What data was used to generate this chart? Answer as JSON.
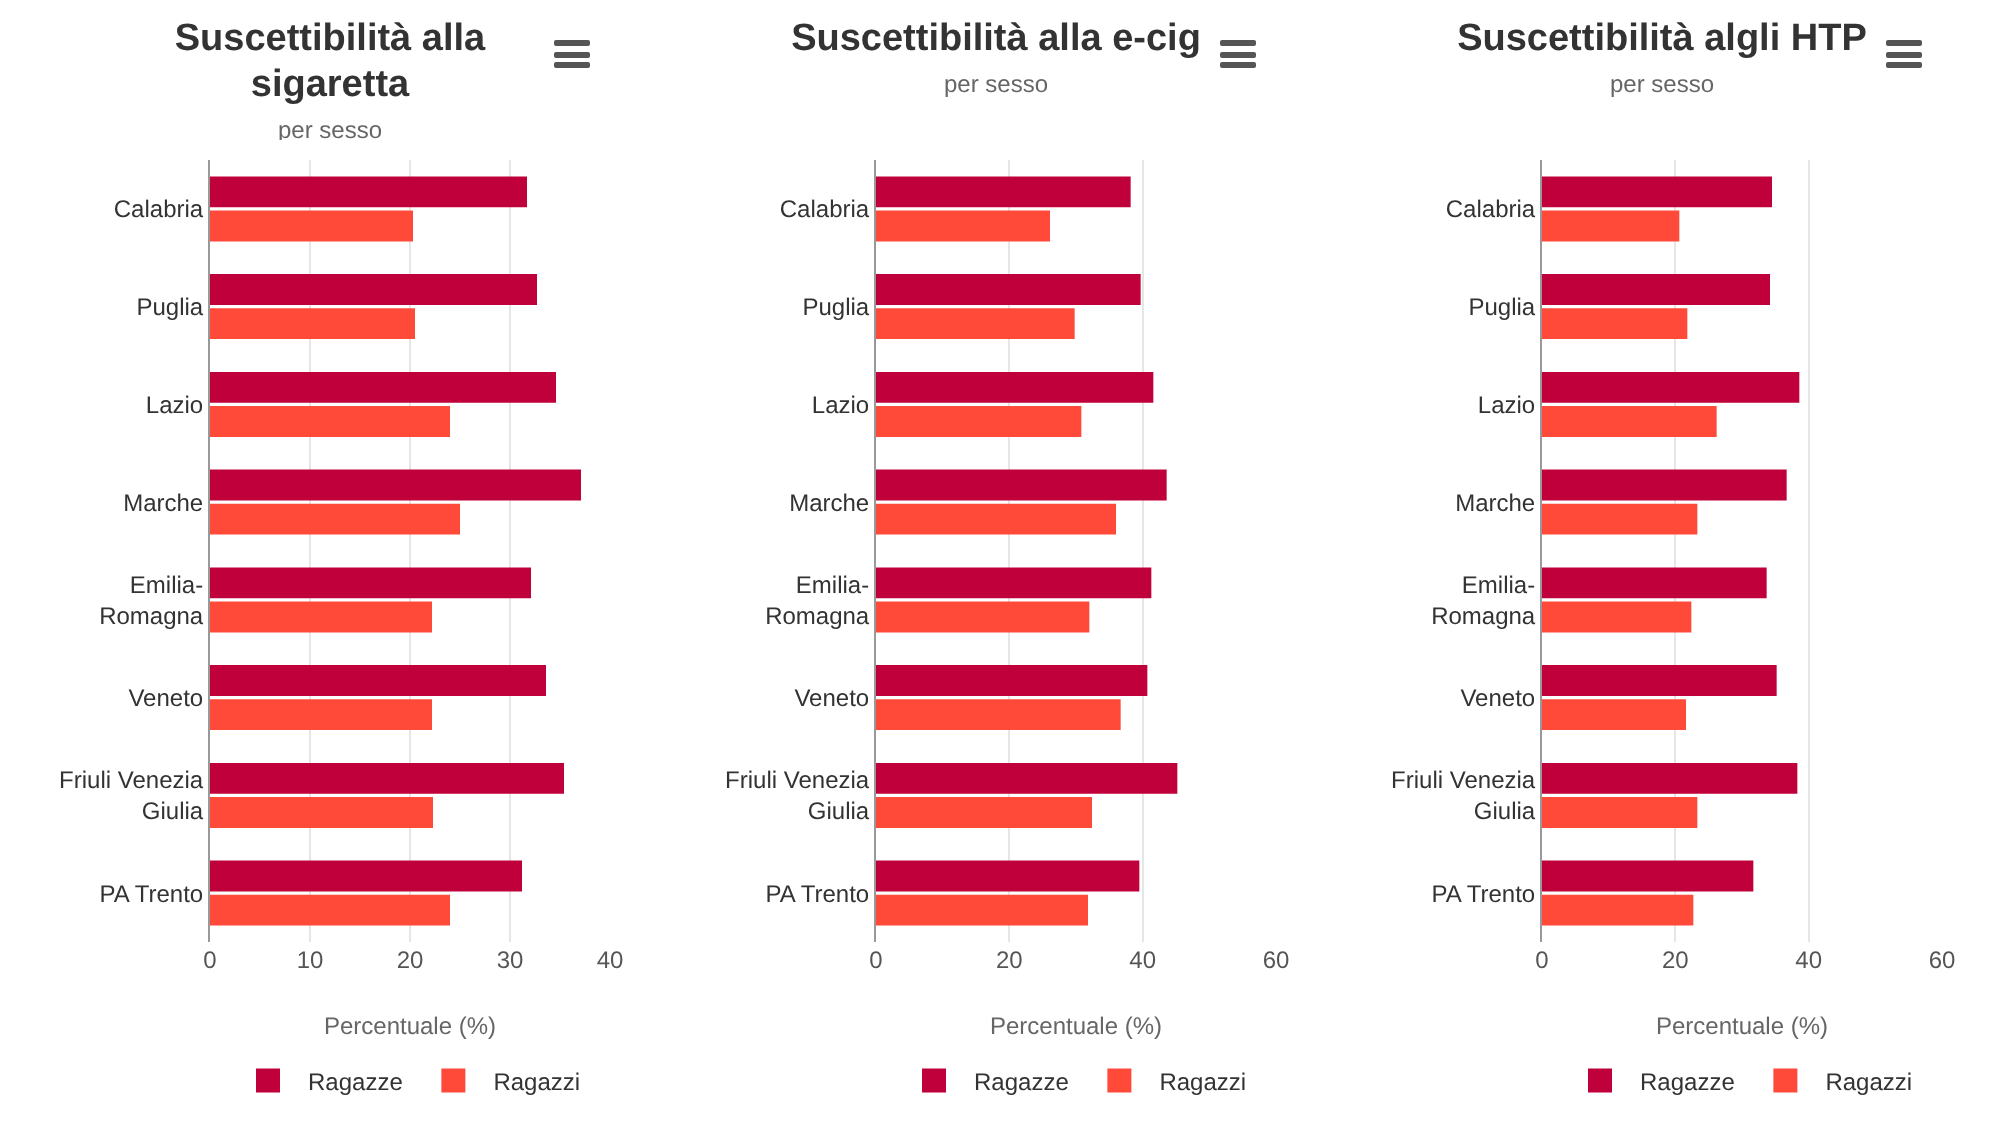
{
  "chart_data": [
    {
      "type": "bar",
      "title": "Suscettibilità alla sigaretta",
      "subtitle": "per sesso",
      "xlabel": "Percentuale (%)",
      "orientation": "horizontal",
      "categories": [
        "Calabria",
        "Puglia",
        "Lazio",
        "Marche",
        "Emilia-Romagna",
        "Veneto",
        "Friuli Venezia Giulia",
        "PA Trento"
      ],
      "xlim": [
        0,
        40
      ],
      "xticks": [
        0,
        10,
        20,
        30,
        40
      ],
      "grid": "x",
      "legend": "bottom",
      "series": [
        {
          "name": "Ragazze",
          "color": "#c0003a",
          "values": [
            31.7,
            32.7,
            34.6,
            37.1,
            32.1,
            33.6,
            35.4,
            31.2
          ]
        },
        {
          "name": "Ragazzi",
          "color": "#ff4a3a",
          "values": [
            20.3,
            20.5,
            24.0,
            25.0,
            22.2,
            22.2,
            22.3,
            24.0
          ]
        }
      ]
    },
    {
      "type": "bar",
      "title": "Suscettibilità alla e-cig",
      "subtitle": "per sesso",
      "xlabel": "Percentuale (%)",
      "orientation": "horizontal",
      "categories": [
        "Calabria",
        "Puglia",
        "Lazio",
        "Marche",
        "Emilia-Romagna",
        "Veneto",
        "Friuli Venezia Giulia",
        "PA Trento"
      ],
      "xlim": [
        0,
        60
      ],
      "xticks": [
        0,
        20,
        40,
        60
      ],
      "grid": "x",
      "legend": "bottom",
      "series": [
        {
          "name": "Ragazze",
          "color": "#c0003a",
          "values": [
            38.2,
            39.7,
            41.6,
            43.6,
            41.3,
            40.7,
            45.2,
            39.5
          ]
        },
        {
          "name": "Ragazzi",
          "color": "#ff4a3a",
          "values": [
            26.1,
            29.8,
            30.8,
            36.0,
            32.0,
            36.7,
            32.4,
            31.8
          ]
        }
      ]
    },
    {
      "type": "bar",
      "title": "Suscettibilità algli HTP",
      "subtitle": "per sesso",
      "xlabel": "Percentuale (%)",
      "orientation": "horizontal",
      "categories": [
        "Calabria",
        "Puglia",
        "Lazio",
        "Marche",
        "Emilia-Romagna",
        "Veneto",
        "Friuli Venezia Giulia",
        "PA Trento"
      ],
      "xlim": [
        0,
        60
      ],
      "xticks": [
        0,
        20,
        40,
        60
      ],
      "grid": "x",
      "legend": "bottom",
      "series": [
        {
          "name": "Ragazze",
          "color": "#c0003a",
          "values": [
            34.5,
            34.2,
            38.6,
            36.7,
            33.7,
            35.2,
            38.3,
            31.7
          ]
        },
        {
          "name": "Ragazzi",
          "color": "#ff4a3a",
          "values": [
            20.6,
            21.8,
            26.2,
            23.3,
            22.4,
            21.6,
            23.3,
            22.7
          ]
        }
      ]
    }
  ]
}
